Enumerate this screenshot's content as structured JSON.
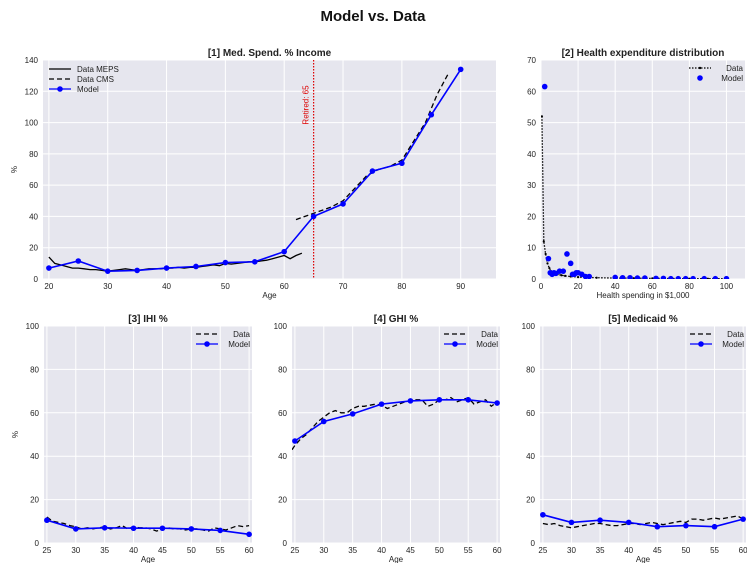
{
  "figure": {
    "title": "Model vs. Data",
    "colors": {
      "model": "#0000ff",
      "data": "#000000",
      "panel_bg": "#e6e6ee",
      "grid": "#ffffff",
      "retire_line": "#dd0000"
    }
  },
  "chart_data": [
    {
      "id": "p1",
      "type": "line",
      "title": "[1] Med. Spend. % Income",
      "xlabel": "Age",
      "ylabel": "%",
      "xlim": [
        19,
        96
      ],
      "ylim": [
        0,
        140
      ],
      "xticks": [
        20,
        30,
        40,
        50,
        60,
        70,
        80,
        90
      ],
      "yticks": [
        0,
        20,
        40,
        60,
        80,
        100,
        120,
        140
      ],
      "legend_position": "top-left",
      "annotation": {
        "x": 65,
        "text": "Retired: 65"
      },
      "series": [
        {
          "name": "Data MEPS",
          "style": "solid",
          "color": "#000000",
          "marker": "none",
          "x": [
            20,
            21,
            22,
            23,
            24,
            25,
            26,
            27,
            28,
            29,
            30,
            31,
            32,
            33,
            34,
            35,
            36,
            37,
            38,
            39,
            40,
            41,
            42,
            43,
            44,
            45,
            46,
            47,
            48,
            49,
            50,
            51,
            52,
            53,
            54,
            55,
            56,
            57,
            58,
            59,
            60,
            61,
            62,
            63
          ],
          "y": [
            14,
            10,
            9,
            8,
            7,
            7,
            6.5,
            6,
            6,
            5.5,
            5,
            5.5,
            6,
            6.5,
            6,
            5.5,
            6,
            6.5,
            6.5,
            6.5,
            7,
            7,
            7.5,
            7,
            7.5,
            7.5,
            8,
            8.5,
            9,
            8.5,
            10,
            9.5,
            10,
            10.5,
            11,
            11,
            11.5,
            12,
            13,
            14,
            15,
            13,
            15,
            16.5
          ]
        },
        {
          "name": "Data CMS",
          "style": "dashed",
          "color": "#000000",
          "marker": "none",
          "x": [
            62,
            65,
            68,
            70,
            72,
            74,
            76,
            78,
            80,
            82,
            84,
            86,
            88
          ],
          "y": [
            38,
            42,
            46,
            50,
            58,
            66,
            70,
            72,
            76,
            88,
            100,
            118,
            132
          ]
        },
        {
          "name": "Model",
          "style": "solid",
          "color": "#0000ff",
          "marker": "circle",
          "x": [
            20,
            25,
            30,
            35,
            40,
            45,
            50,
            55,
            60,
            65,
            70,
            75,
            80,
            85,
            90
          ],
          "y": [
            7,
            11.5,
            5,
            5.5,
            7,
            8,
            10.5,
            11,
            17.5,
            40,
            48,
            69,
            74,
            105,
            134
          ]
        }
      ]
    },
    {
      "id": "p2",
      "type": "line",
      "title": "[2] Health expenditure distribution",
      "xlabel": "Health spending in $1,000",
      "ylabel": "",
      "xlim": [
        0,
        110
      ],
      "ylim": [
        0,
        70
      ],
      "xticks": [
        0,
        20,
        40,
        60,
        80,
        100
      ],
      "yticks": [
        0,
        10,
        20,
        30,
        40,
        50,
        60,
        70
      ],
      "legend_position": "top-right",
      "series": [
        {
          "name": "Data",
          "style": "dotted",
          "color": "#000000",
          "marker": "dot",
          "x": [
            0.5,
            1.5,
            2.5,
            3.5,
            4.5,
            5.5,
            7,
            9,
            11,
            13,
            16,
            20,
            25,
            30,
            40,
            50,
            60,
            70,
            80,
            90,
            100
          ],
          "y": [
            52,
            12,
            8,
            5,
            3.5,
            2.5,
            2,
            1.5,
            1.2,
            1,
            0.8,
            0.6,
            0.5,
            0.4,
            0.3,
            0.25,
            0.2,
            0.15,
            0.1,
            0.1,
            0.1
          ]
        },
        {
          "name": "Model",
          "style": "none",
          "color": "#0000ff",
          "marker": "circle",
          "x": [
            2,
            4,
            5,
            6,
            7,
            8,
            10,
            12,
            14,
            16,
            17,
            18,
            19,
            20,
            22,
            24,
            26,
            40,
            44,
            48,
            52,
            56,
            62,
            66,
            70,
            74,
            78,
            82,
            88,
            94,
            100
          ],
          "y": [
            61.5,
            6.5,
            2,
            1.5,
            2,
            1.8,
            2.5,
            2.5,
            8,
            5,
            1.5,
            1.5,
            2,
            2,
            1.5,
            0.8,
            0.8,
            0.5,
            0.4,
            0.4,
            0.3,
            0.3,
            0.2,
            0.2,
            0.1,
            0.1,
            0.1,
            0.1,
            0.1,
            0.1,
            0.1
          ]
        }
      ]
    },
    {
      "id": "p3",
      "type": "line",
      "title": "[3] IHI %",
      "xlabel": "Age",
      "ylabel": "%",
      "xlim": [
        24.5,
        60.5
      ],
      "ylim": [
        0,
        100
      ],
      "xticks": [
        25,
        30,
        35,
        40,
        45,
        50,
        55,
        60
      ],
      "yticks": [
        0,
        20,
        40,
        60,
        80,
        100
      ],
      "legend_position": "top-right",
      "series": [
        {
          "name": "Data",
          "style": "dashed",
          "color": "#000000",
          "marker": "none",
          "x": [
            25,
            26,
            27,
            28,
            29,
            30,
            31,
            32,
            33,
            34,
            35,
            36,
            37,
            38,
            39,
            40,
            41,
            42,
            43,
            44,
            45,
            46,
            47,
            48,
            49,
            50,
            51,
            52,
            53,
            54,
            55,
            56,
            57,
            58,
            59,
            60
          ],
          "y": [
            12,
            10,
            9.5,
            9,
            8,
            7.5,
            6.5,
            7,
            6.5,
            7,
            7.5,
            6.5,
            7,
            8,
            6.5,
            7.5,
            7,
            7,
            6.5,
            5.5,
            6.5,
            7,
            6.5,
            6.5,
            6,
            6.5,
            6.5,
            6,
            5.5,
            7,
            6.5,
            6,
            7,
            8,
            7.5,
            8
          ]
        },
        {
          "name": "Model",
          "style": "solid",
          "color": "#0000ff",
          "marker": "circle",
          "x": [
            25,
            30,
            35,
            40,
            45,
            50,
            55,
            60
          ],
          "y": [
            10.5,
            6.5,
            7,
            6.8,
            6.8,
            6.5,
            5.8,
            4
          ]
        }
      ]
    },
    {
      "id": "p4",
      "type": "line",
      "title": "[4] GHI %",
      "xlabel": "Age",
      "ylabel": "",
      "xlim": [
        24.5,
        60.5
      ],
      "ylim": [
        0,
        100
      ],
      "xticks": [
        25,
        30,
        35,
        40,
        45,
        50,
        55,
        60
      ],
      "yticks": [
        0,
        20,
        40,
        60,
        80,
        100
      ],
      "legend_position": "top-right",
      "series": [
        {
          "name": "Data",
          "style": "dashed",
          "color": "#000000",
          "marker": "none",
          "x": [
            24.5,
            25,
            26,
            27,
            28,
            29,
            30,
            31,
            32,
            33,
            34,
            35,
            36,
            37,
            38,
            39,
            40,
            41,
            42,
            43,
            44,
            45,
            46,
            47,
            48,
            49,
            50,
            51,
            52,
            53,
            54,
            55,
            56,
            57,
            58,
            59,
            60
          ],
          "y": [
            43,
            45,
            48,
            50,
            53,
            56,
            58,
            60,
            61,
            60,
            60,
            62,
            63,
            63,
            63.5,
            64,
            63.5,
            62,
            63,
            64,
            65,
            65.5,
            66,
            66,
            63,
            64,
            66,
            66,
            67,
            65,
            66,
            67,
            64,
            65,
            66,
            63,
            65
          ]
        },
        {
          "name": "Model",
          "style": "solid",
          "color": "#0000ff",
          "marker": "circle",
          "x": [
            25,
            30,
            35,
            40,
            45,
            50,
            55,
            60
          ],
          "y": [
            47,
            56,
            59.5,
            64,
            65.5,
            66,
            66,
            64.5
          ]
        }
      ]
    },
    {
      "id": "p5",
      "type": "line",
      "title": "[5] Medicaid %",
      "xlabel": "Age",
      "ylabel": "",
      "xlim": [
        24.5,
        60.5
      ],
      "ylim": [
        0,
        100
      ],
      "xticks": [
        25,
        30,
        35,
        40,
        45,
        50,
        55,
        60
      ],
      "yticks": [
        0,
        20,
        40,
        60,
        80,
        100
      ],
      "legend_position": "top-right",
      "series": [
        {
          "name": "Data",
          "style": "dashed",
          "color": "#000000",
          "marker": "none",
          "x": [
            25,
            26,
            27,
            28,
            29,
            30,
            31,
            32,
            33,
            34,
            35,
            36,
            37,
            38,
            39,
            40,
            41,
            42,
            43,
            44,
            45,
            46,
            47,
            48,
            49,
            50,
            51,
            52,
            53,
            54,
            55,
            56,
            57,
            58,
            59,
            60
          ],
          "y": [
            9,
            8.5,
            9,
            8,
            7.5,
            7,
            7.5,
            8,
            8.5,
            9,
            9,
            8.5,
            8,
            8,
            8.5,
            9,
            9,
            8.5,
            9,
            9.5,
            9,
            8.5,
            9,
            9.5,
            10,
            9.5,
            11,
            11,
            10.5,
            11,
            11.5,
            11,
            11.5,
            12,
            12.5,
            11
          ]
        },
        {
          "name": "Model",
          "style": "solid",
          "color": "#0000ff",
          "marker": "circle",
          "x": [
            25,
            30,
            35,
            40,
            45,
            50,
            55,
            60
          ],
          "y": [
            13,
            9.5,
            10.5,
            9.5,
            7.5,
            8,
            7.5,
            11
          ]
        }
      ]
    }
  ]
}
